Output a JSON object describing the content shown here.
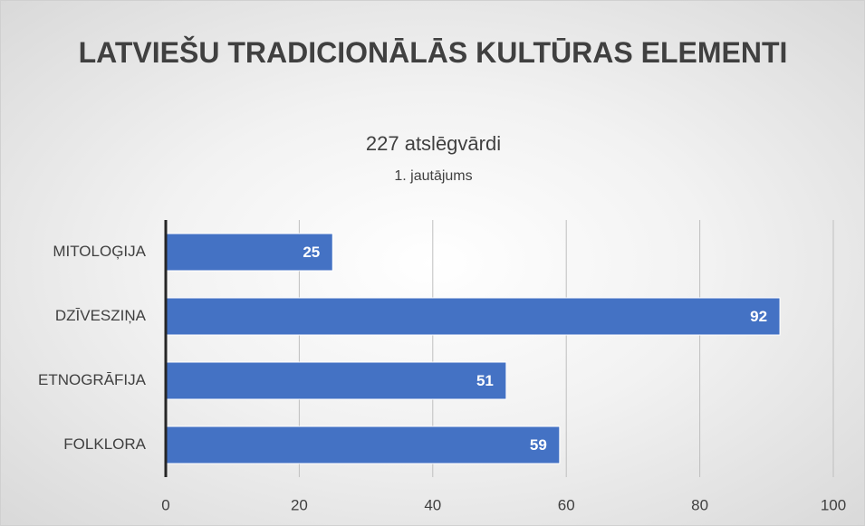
{
  "chart_data": {
    "type": "bar",
    "orientation": "horizontal",
    "title": "LATVIEŠU TRADICIONĀLĀS KULTŪRAS ELEMENTI",
    "subtitle": "227 atslēgvārdi",
    "subtitle2": "1. jautājums",
    "categories": [
      "MITOLOĢIJA",
      "DZĪVESZIŅA",
      "ETNOGRĀFIJA",
      "FOLKLORA"
    ],
    "values": [
      25,
      92,
      51,
      59
    ],
    "color": "#4472c4",
    "xlim": [
      0,
      100
    ],
    "xticks": [
      0,
      20,
      40,
      60,
      80,
      100
    ],
    "grid": true
  }
}
